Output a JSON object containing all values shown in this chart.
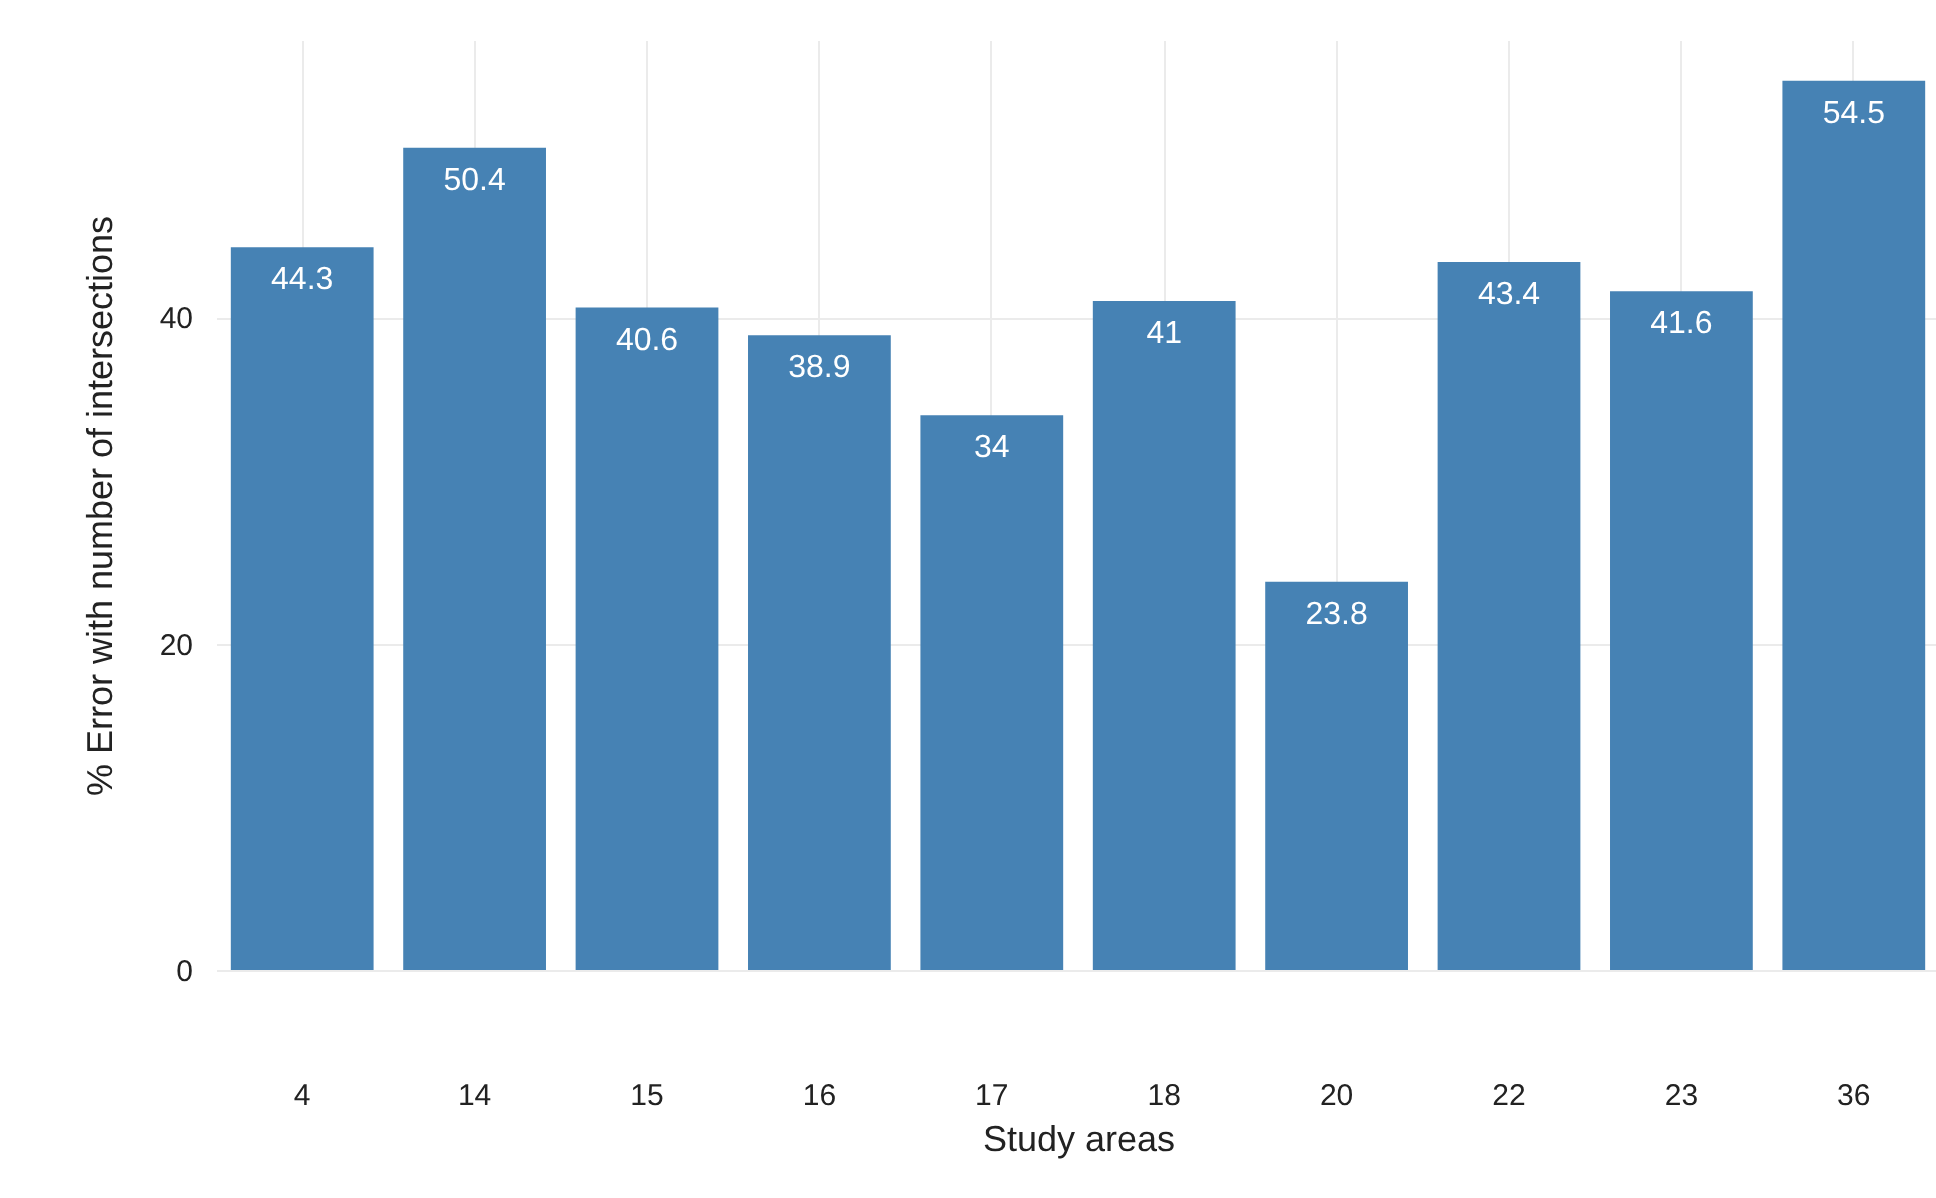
{
  "chart_data": {
    "type": "bar",
    "xlabel": "Study areas",
    "ylabel": "% Error with number of intersections",
    "categories": [
      "4",
      "14",
      "15",
      "16",
      "17",
      "18",
      "20",
      "22",
      "23",
      "36"
    ],
    "values": [
      44.3,
      50.4,
      40.6,
      38.9,
      34,
      41,
      23.8,
      43.4,
      41.6,
      54.5
    ],
    "color": "#4682b4",
    "ylim": [
      0,
      57
    ],
    "yticks": [
      0,
      20,
      40
    ],
    "grid": true,
    "data_labels": true
  }
}
